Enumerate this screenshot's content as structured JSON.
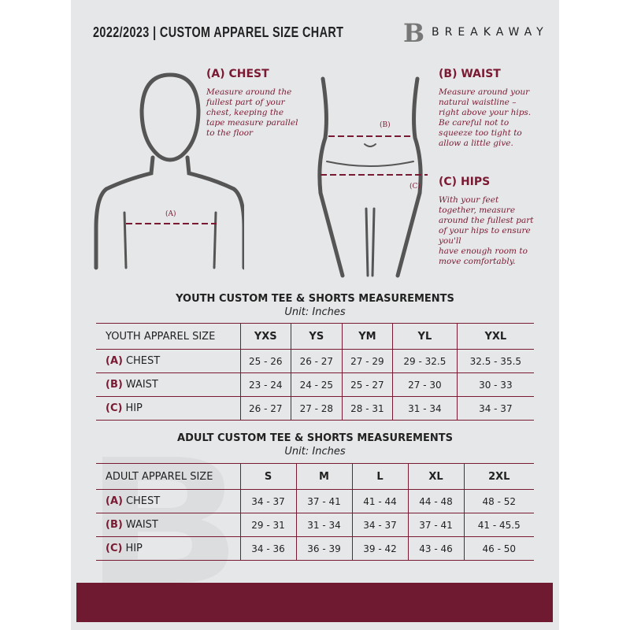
{
  "header": {
    "title": "2022/2023  |  CUSTOM APPAREL SIZE CHART",
    "brand": "BREAKAWAY",
    "logo": "B"
  },
  "measures": {
    "chest": {
      "heading": "(A) CHEST",
      "tag": "(A)",
      "lines": [
        "Measure around the",
        "fullest part of your",
        "chest, keeping the",
        "tape measure parallel",
        "to the floor"
      ]
    },
    "waist": {
      "heading": "(B) WAIST",
      "tag": "(B)",
      "lines": [
        "Measure around your",
        "natural waistline –",
        "right above your hips.",
        "Be careful not to",
        "squeeze too tight to",
        "allow a little give."
      ]
    },
    "hips": {
      "heading": "(C) HIPS",
      "tag": "(C)",
      "lines": [
        "With your feet",
        "together, measure",
        "around the fullest part",
        "of your hips to ensure",
        "you'll",
        "have enough room to",
        "move comfortably."
      ]
    }
  },
  "youth": {
    "title": "YOUTH CUSTOM TEE & SHORTS MEASUREMENTS",
    "unit": "Unit: Inches",
    "header": [
      "YOUTH APPAREL SIZE",
      "YXS",
      "YS",
      "YM",
      "YL",
      "YXL"
    ],
    "rows": [
      {
        "tag": "(A)",
        "label": "CHEST",
        "values": [
          "25 - 26",
          "26 - 27",
          "27 - 29",
          "29 - 32.5",
          "32.5 - 35.5"
        ]
      },
      {
        "tag": "(B)",
        "label": "WAIST",
        "values": [
          "23 - 24",
          "24 - 25",
          "25 - 27",
          "27 - 30",
          "30 - 33"
        ]
      },
      {
        "tag": "(C)",
        "label": "HIP",
        "values": [
          "26 - 27",
          "27 - 28",
          "28 - 31",
          "31 - 34",
          "34 - 37"
        ]
      }
    ]
  },
  "adult": {
    "title": "ADULT CUSTOM TEE & SHORTS MEASUREMENTS",
    "unit": "Unit: Inches",
    "header": [
      "ADULT APPAREL SIZE",
      "S",
      "M",
      "L",
      "XL",
      "2XL"
    ],
    "rows": [
      {
        "tag": "(A)",
        "label": "CHEST",
        "values": [
          "34 - 37",
          "37 - 41",
          "41 - 44",
          "44 - 48",
          "48 - 52"
        ]
      },
      {
        "tag": "(B)",
        "label": "WAIST",
        "values": [
          "29 - 31",
          "31 - 34",
          "34 - 37",
          "37 - 41",
          "41 - 45.5"
        ]
      },
      {
        "tag": "(C)",
        "label": "HIP",
        "values": [
          "34 - 36",
          "36 - 39",
          "39 - 42",
          "43 - 46",
          "46 - 50"
        ]
      }
    ]
  },
  "colors": {
    "accent": "#7a1a32",
    "panel": "#e6e7e9",
    "footer": "#701a31"
  }
}
